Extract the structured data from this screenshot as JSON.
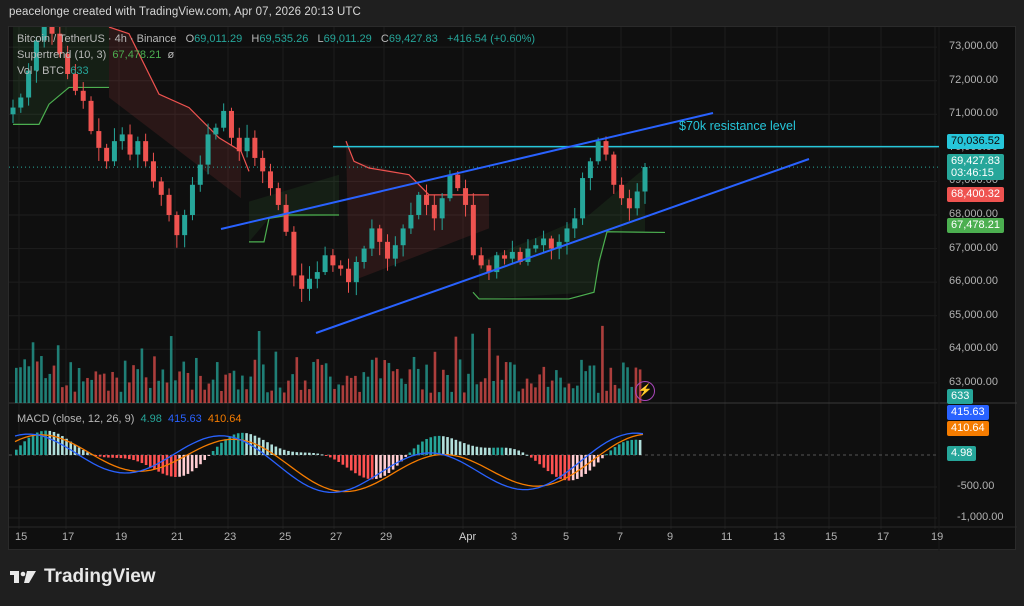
{
  "credit": "peacelonge created with TradingView.com, Apr 07, 2026 20:13 UTC",
  "legend": {
    "symbol": "Bitcoin / TetherUS · 4h · Binance",
    "o_label": "O",
    "o": "69,011.29",
    "h_label": "H",
    "h": "69,535.26",
    "l_label": "L",
    "l": "69,011.29",
    "c_label": "C",
    "c": "69,427.83",
    "change": "+416.54 (+0.60%)",
    "supertrend_label": "Supertrend (10, 3)",
    "supertrend_value": "67,478.21",
    "supertrend_symbol": "ø",
    "vol_label": "Vol · BTC",
    "vol_value": "633",
    "macd_label": "MACD (close, 12, 26, 9)",
    "macd_hist": "4.98",
    "macd_line": "415.63",
    "macd_signal": "410.64"
  },
  "annotation": "$70k resistance level",
  "price_tags": {
    "resistance": "70,036.52",
    "last": "69,427.83",
    "countdown": "03:46:15",
    "supertrend_red": "68,400.32",
    "supertrend_green": "67,478.21",
    "volume": "633",
    "macd": "415.63",
    "signal": "410.64",
    "hist": "4.98"
  },
  "colors": {
    "up": "#26a69a",
    "down": "#ef5350",
    "resistance": "#26c6da",
    "channel": "#2962ff",
    "macd": "#2962ff",
    "signal": "#f57c00",
    "st_up": "#4caf50",
    "st_down": "#ef5350"
  },
  "logo": "TradingView",
  "chart_data": [
    {
      "type": "candlestick",
      "title": "Bitcoin / TetherUS · 4h · Binance",
      "yaxis_ticks": [
        "73,000.00",
        "72,000.00",
        "71,000.00",
        "70,000.00",
        "69,000.00",
        "68,000.00",
        "67,000.00",
        "66,000.00",
        "65,000.00",
        "64,000.00",
        "63,000.00"
      ],
      "ylim": [
        62400,
        73600
      ],
      "xaxis_ticks": [
        "15",
        "17",
        "19",
        "21",
        "23",
        "25",
        "27",
        "29",
        "Apr",
        "3",
        "5",
        "7",
        "9",
        "11",
        "13",
        "15",
        "17",
        "19"
      ],
      "last_close": 69427.83,
      "ohlc_last": {
        "open": 69011.29,
        "high": 69535.26,
        "low": 69011.29,
        "close": 69427.83
      },
      "change": 416.54,
      "change_pct": 0.6,
      "path_closes": [
        71200,
        71500,
        72300,
        73200,
        73600,
        73400,
        72800,
        72200,
        71700,
        71400,
        70500,
        70000,
        69600,
        70200,
        70400,
        69800,
        70200,
        69600,
        69000,
        68600,
        68000,
        67400,
        68000,
        68900,
        69500,
        70400,
        70600,
        71100,
        70300,
        69900,
        70300,
        69700,
        69300,
        68800,
        68300,
        67500,
        66200,
        65800,
        66100,
        66300,
        66800,
        66500,
        66400,
        66000,
        66600,
        67000,
        67600,
        67200,
        66700,
        67100,
        67600,
        68000,
        68600,
        68300,
        67900,
        68500,
        69200,
        68800,
        68300,
        66800,
        66500,
        66300,
        66800,
        66700,
        66900,
        66600,
        67000,
        67100,
        67300,
        67000,
        67200,
        67600,
        67900,
        69100,
        69600,
        70200,
        69800,
        68900,
        68500,
        68200,
        68700,
        69430
      ],
      "annotations": [
        {
          "type": "hline",
          "label": "$70k resistance level",
          "value": 70036.52
        },
        {
          "type": "trendline",
          "name": "channel-upper"
        },
        {
          "type": "trendline",
          "name": "channel-lower"
        }
      ],
      "indicators": [
        {
          "name": "Supertrend (10, 3)",
          "value": 67478.21
        },
        {
          "name": "Vol · BTC",
          "value": 633
        }
      ]
    },
    {
      "type": "bar+line",
      "title": "MACD (close, 12, 26, 9)",
      "yaxis_ticks": [
        "-500.00",
        "-1,000.00"
      ],
      "series": [
        {
          "name": "Histogram",
          "value": 4.98
        },
        {
          "name": "MACD",
          "value": 415.63
        },
        {
          "name": "Signal",
          "value": 410.64
        }
      ]
    }
  ]
}
